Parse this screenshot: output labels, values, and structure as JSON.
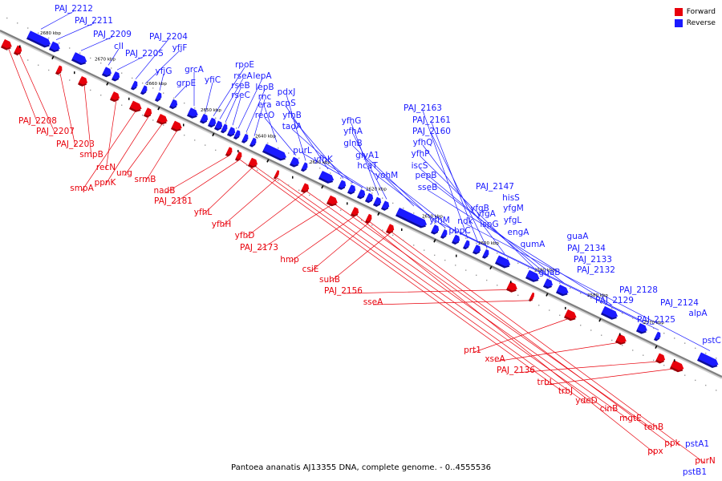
{
  "colors": {
    "forward": "#e8000b",
    "reverse": "#1a1aff",
    "backbone": "#7f7f7f"
  },
  "legend": {
    "forward": "Forward",
    "reverse": "Reverse"
  },
  "caption": "Pantoea ananatis AJ13355 DNA, complete genome. - 0..4555536",
  "ticks": [
    "2680 kbp",
    "2670 kbp",
    "2660 kbp",
    "2650 kbp",
    "2640 kbp",
    "2630 kbp",
    "2620 kbp",
    "2610 kbp",
    "2600 kbp",
    "2590 kbp",
    "2580 kbp",
    "2570 kbp"
  ],
  "reverse_labels": [
    "PAJ_2212",
    "PAJ_2211",
    "PAJ_2209",
    "cII",
    "PAJ_2205",
    "PAJ_2204",
    "yfjF",
    "yfjG",
    "grpE",
    "grcA",
    "yfiC",
    "rpoE",
    "rseA",
    "rseB",
    "rseC",
    "lepA",
    "lepB",
    "rnc",
    "era",
    "recO",
    "pdxJ",
    "acpS",
    "yfhB",
    "tadA",
    "purL",
    "yfhK",
    "yfhG",
    "yfhA",
    "glnB",
    "glyA1",
    "hcaT",
    "yohM",
    "PAJ_2163",
    "PAJ_2161",
    "PAJ_2160",
    "yfhQ",
    "yfhP",
    "iscS",
    "pepB",
    "sseB",
    "yfhM",
    "pbpC",
    "ndk",
    "yfgB",
    "PAJ_2147",
    "yfgA",
    "ispG",
    "hisS",
    "yfgM",
    "yfgL",
    "engA",
    "qumA",
    "guaB",
    "guaA",
    "PAJ_2134",
    "PAJ_2133",
    "PAJ_2132",
    "PAJ_2129",
    "PAJ_2128",
    "PAJ_2125",
    "PAJ_2124",
    "alpA",
    "pstC",
    "pstA1",
    "pstB1"
  ],
  "forward_labels": [
    "PAJ_2208",
    "PAJ_2207",
    "PAJ_2203",
    "smpB",
    "recN",
    "smpA",
    "ppnK",
    "ung",
    "srmB",
    "nadB",
    "PAJ_2181",
    "yfhL",
    "yfhH",
    "yfhD",
    "PAJ_2173",
    "hmp",
    "csiE",
    "suhB",
    "PAJ_2156",
    "sseA",
    "prt1",
    "xseA",
    "PAJ_2136",
    "trbL",
    "trbJ",
    "ydeD",
    "cinB",
    "mgtE",
    "tehB",
    "ppx",
    "ppk",
    "purN"
  ]
}
